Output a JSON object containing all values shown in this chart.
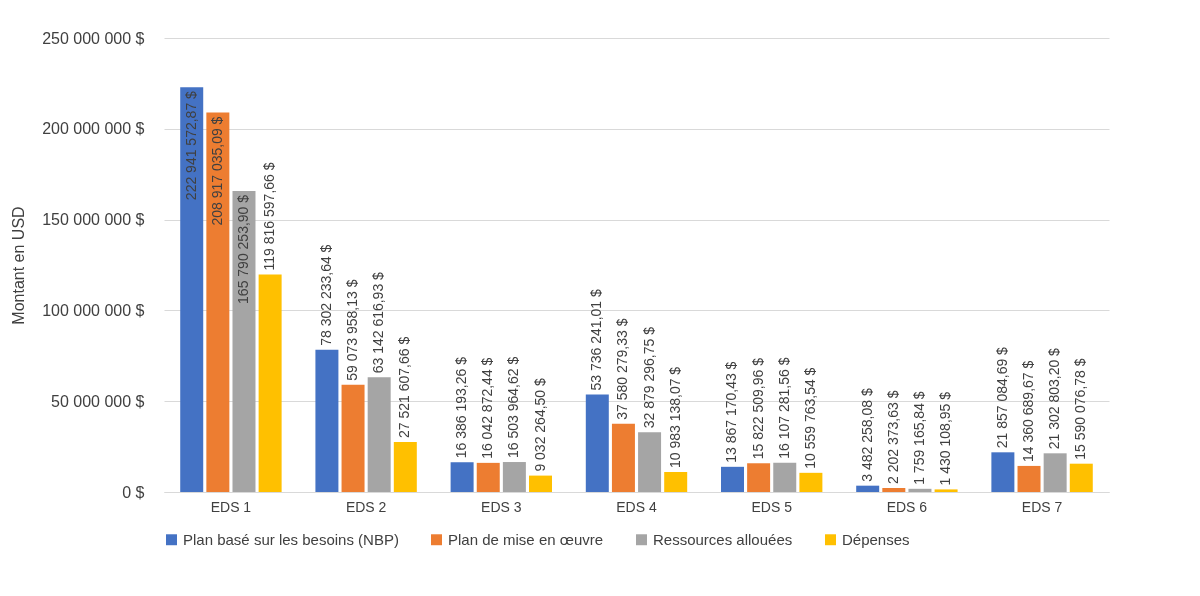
{
  "chart_data": {
    "type": "bar",
    "ylabel": "Montant en USD",
    "categories": [
      "EDS 1",
      "EDS 2",
      "EDS 3",
      "EDS 4",
      "EDS 5",
      "EDS 6",
      "EDS 7"
    ],
    "series": [
      {
        "name": "Plan basé sur les besoins (NBP)",
        "color": "#4472c4",
        "values": [
          222941572.87,
          78302233.64,
          16386193.26,
          53736241.01,
          13867170.43,
          3482258.08,
          21857084.69
        ],
        "value_labels": [
          "222 941 572,87 $",
          "78 302 233,64 $",
          "16 386 193,26 $",
          "53 736 241,01 $",
          "13 867 170,43 $",
          "3 482 258,08 $",
          "21 857 084,69 $"
        ]
      },
      {
        "name": "Plan de mise en œuvre",
        "color": "#ed7d31",
        "values": [
          208917035.09,
          59073958.13,
          16042872.44,
          37580279.33,
          15822509.96,
          2202373.63,
          14360689.67
        ],
        "value_labels": [
          "208 917 035,09 $",
          "59 073 958,13 $",
          "16 042 872,44 $",
          "37 580 279,33 $",
          "15 822 509,96 $",
          "2 202 373,63 $",
          "14 360 689,67 $"
        ]
      },
      {
        "name": "Ressources allouées",
        "color": "#a5a5a5",
        "values": [
          165790253.9,
          63142616.93,
          16503964.62,
          32879296.75,
          16107281.56,
          1759165.84,
          21302803.2
        ],
        "value_labels": [
          "165 790 253,90 $",
          "63 142 616,93 $",
          "16 503 964,62 $",
          "32 879 296,75 $",
          "16 107 281,56 $",
          "1 759 165,84 $",
          "21 302 803,20 $"
        ]
      },
      {
        "name": "Dépenses",
        "color": "#ffc000",
        "values": [
          119816597.66,
          27521607.66,
          9032264.5,
          10983138.07,
          10559763.54,
          1430108.95,
          15590076.78
        ],
        "value_labels": [
          "119 816 597,66 $",
          "27 521 607,66 $",
          "9 032 264,50 $",
          "10 983 138,07 $",
          "10 559 763,54 $",
          "1 430 108,95 $",
          "15 590 076,78 $"
        ]
      }
    ],
    "ylim": [
      0,
      250000000
    ],
    "yticks": [
      {
        "value": 0,
        "label": "0 $"
      },
      {
        "value": 50000000,
        "label": "50 000 000 $"
      },
      {
        "value": 100000000,
        "label": "100 000 000 $"
      },
      {
        "value": 150000000,
        "label": "150 000 000 $"
      },
      {
        "value": 200000000,
        "label": "200 000 000 $"
      },
      {
        "value": 250000000,
        "label": "250 000 000 $"
      }
    ],
    "grid": "y",
    "legend": "bottom"
  }
}
